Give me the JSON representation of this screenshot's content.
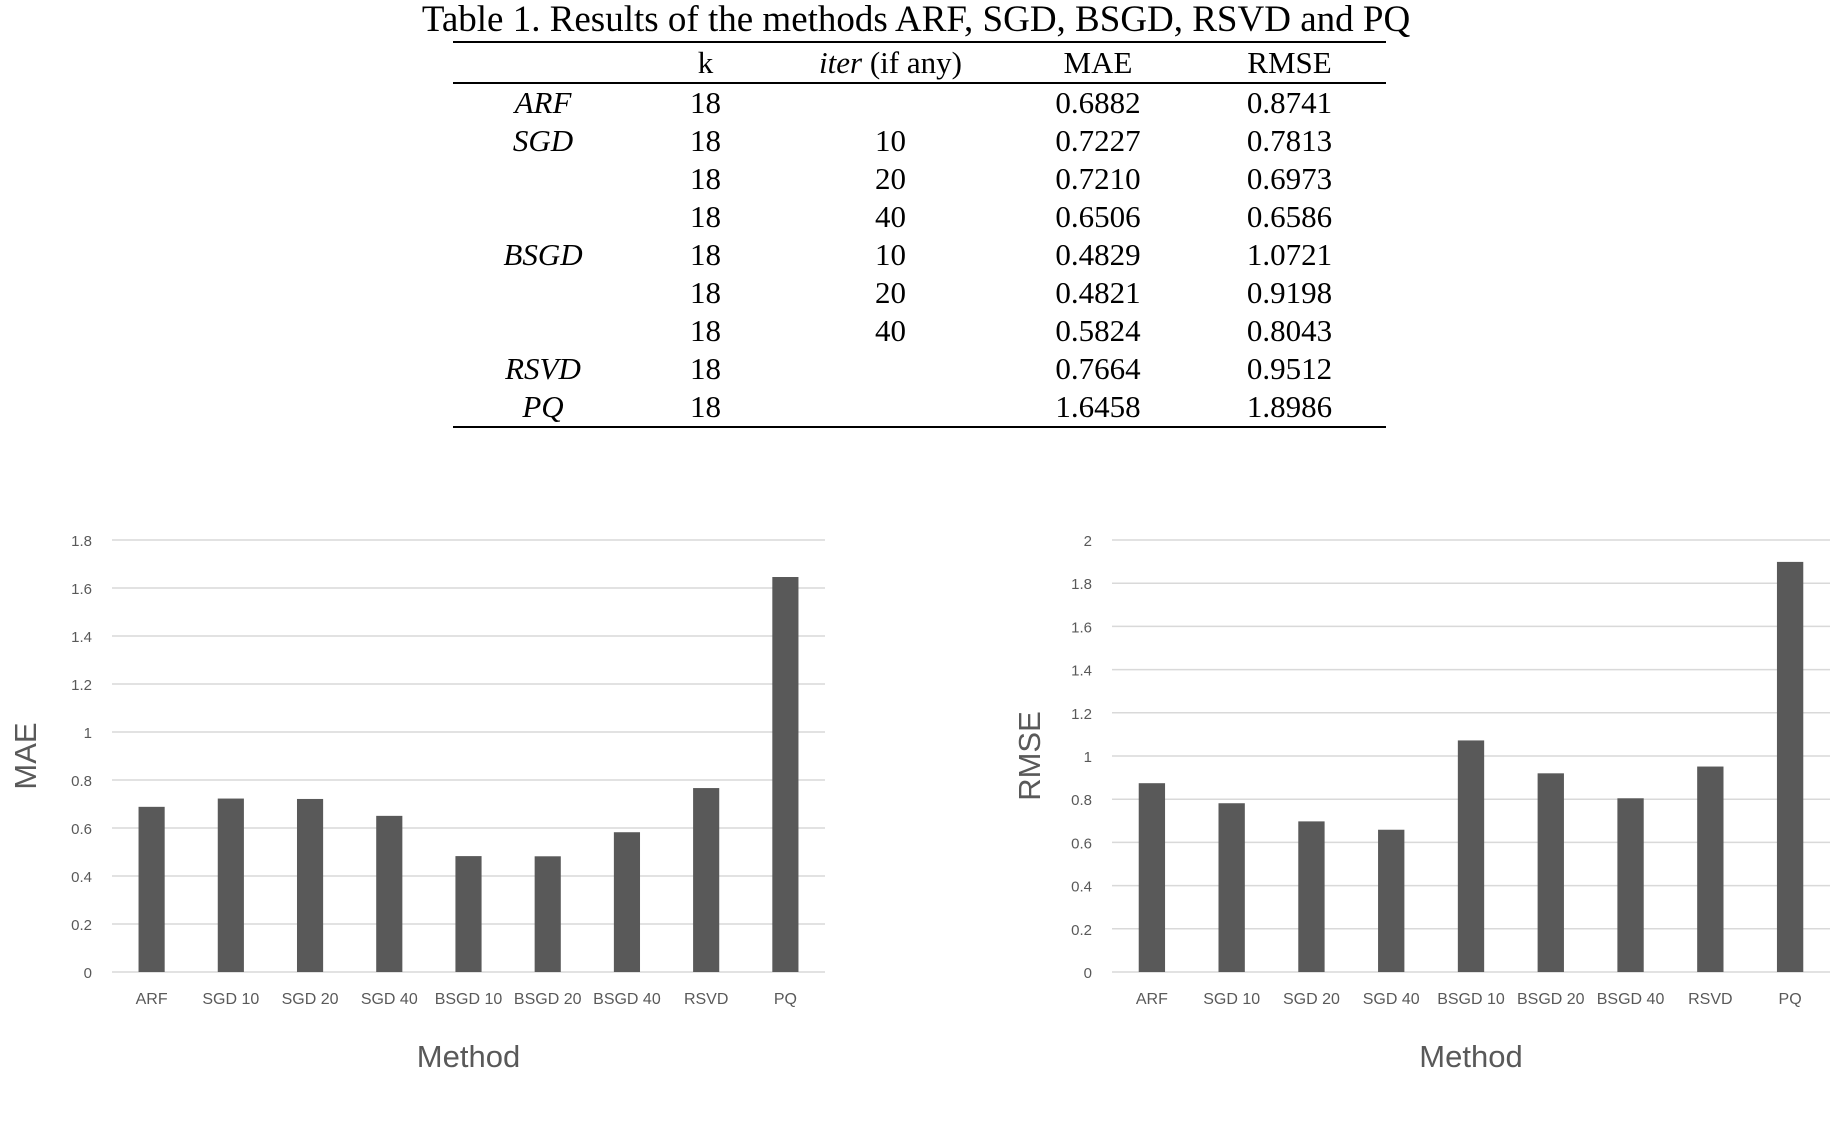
{
  "caption": "Table 1. Results of the methods ARF, SGD, BSGD, RSVD and PQ",
  "table": {
    "headers": [
      "",
      "k",
      "iter",
      "(if any)",
      "MAE",
      "RMSE"
    ],
    "rows": [
      {
        "method": "ARF",
        "k": "18",
        "iter": "",
        "mae": "0.6882",
        "rmse": "0.8741"
      },
      {
        "method": "SGD",
        "k": "18",
        "iter": "10",
        "mae": "0.7227",
        "rmse": "0.7813"
      },
      {
        "method": "",
        "k": "18",
        "iter": "20",
        "mae": "0.7210",
        "rmse": "0.6973"
      },
      {
        "method": "",
        "k": "18",
        "iter": "40",
        "mae": "0.6506",
        "rmse": "0.6586"
      },
      {
        "method": "BSGD",
        "k": "18",
        "iter": "10",
        "mae": "0.4829",
        "rmse": "1.0721"
      },
      {
        "method": "",
        "k": "18",
        "iter": "20",
        "mae": "0.4821",
        "rmse": "0.9198"
      },
      {
        "method": "",
        "k": "18",
        "iter": "40",
        "mae": "0.5824",
        "rmse": "0.8043"
      },
      {
        "method": "RSVD",
        "k": "18",
        "iter": "",
        "mae": "0.7664",
        "rmse": "0.9512"
      },
      {
        "method": "PQ",
        "k": "18",
        "iter": "",
        "mae": "1.6458",
        "rmse": "1.8986"
      }
    ]
  },
  "colors": {
    "bar": "#595959",
    "grid": "#d9d9d9",
    "tick_text": "#595959",
    "axis_title": "#595959"
  },
  "chart_data": [
    {
      "type": "bar",
      "categories": [
        "ARF",
        "SGD 10",
        "SGD 20",
        "SGD 40",
        "BSGD 10",
        "BSGD 20",
        "BSGD 40",
        "RSVD",
        "PQ"
      ],
      "values": [
        0.6882,
        0.7227,
        0.721,
        0.6506,
        0.4829,
        0.4821,
        0.5824,
        0.7664,
        1.6458
      ],
      "xlabel": "Method",
      "ylabel": "MAE",
      "ylim": [
        0,
        1.8
      ],
      "yticks": [
        "0",
        "0.2",
        "0.4",
        "0.6",
        "0.8",
        "1",
        "1.2",
        "1.4",
        "1.6",
        "1.8"
      ],
      "grid": true
    },
    {
      "type": "bar",
      "categories": [
        "ARF",
        "SGD 10",
        "SGD 20",
        "SGD 40",
        "BSGD 10",
        "BSGD 20",
        "BSGD 40",
        "RSVD",
        "PQ"
      ],
      "values": [
        0.8741,
        0.7813,
        0.6973,
        0.6586,
        1.0721,
        0.9198,
        0.8043,
        0.9512,
        1.8986
      ],
      "xlabel": "Method",
      "ylabel": "RMSE",
      "ylim": [
        0,
        2
      ],
      "yticks": [
        "0",
        "0.2",
        "0.4",
        "0.6",
        "0.8",
        "1",
        "1.2",
        "1.4",
        "1.6",
        "1.8",
        "2"
      ],
      "grid": true
    }
  ]
}
